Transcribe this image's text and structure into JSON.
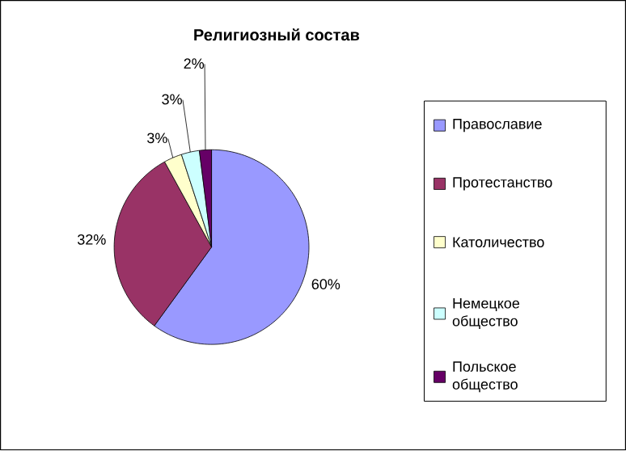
{
  "chart_data": {
    "type": "pie",
    "title": "Религиозный состав",
    "categories": [
      "Православие",
      "Протестанство",
      "Католичество",
      "Немецкое общество",
      "Польское общество"
    ],
    "values": [
      60,
      32,
      3,
      3,
      2
    ],
    "value_labels": [
      "60%",
      "32%",
      "3%",
      "3%",
      "2%"
    ],
    "colors": [
      "#9999ff",
      "#993366",
      "#ffffcc",
      "#ccffff",
      "#660066"
    ],
    "legend": "right"
  }
}
